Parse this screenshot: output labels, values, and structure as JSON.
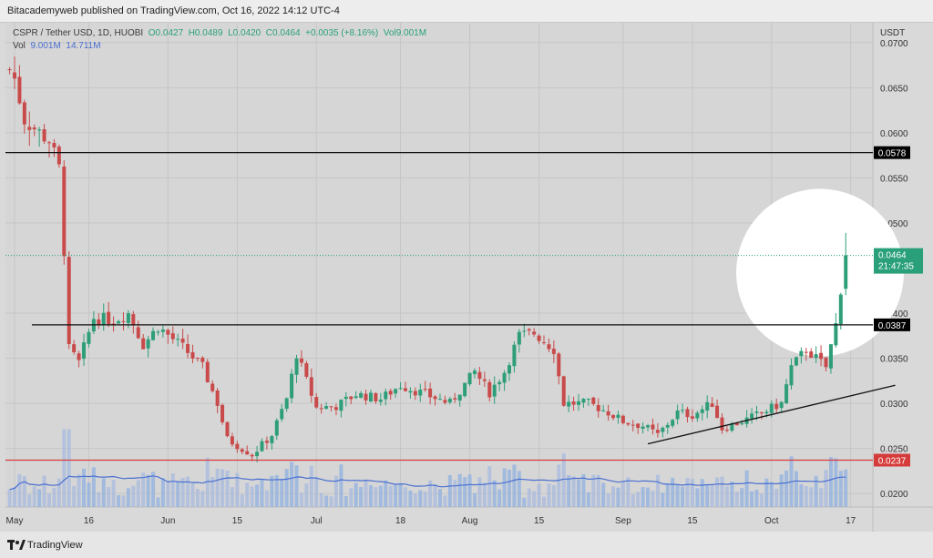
{
  "header": {
    "publisher_line": "Bitacademyweb published on TradingView.com, Oct 16, 2022 14:12 UTC-4"
  },
  "legend": {
    "symbol": "CSPR / Tether USD, 1D, HUOBI",
    "open": "O0.0427",
    "high": "H0.0489",
    "low": "L0.0420",
    "close": "C0.0464",
    "change": "+0.0035 (+8.16%)",
    "volume": "Vol9.001M",
    "vol_label": "Vol",
    "vol_value": "9.001M",
    "vol_ma": "14.711M"
  },
  "footer": {
    "brand": "TradingView"
  },
  "colors": {
    "up": "#2e9e78",
    "down": "#c94a4a",
    "up_volume": "#8fb0e0",
    "down_volume": "#a7b9df",
    "vol_ma_line": "#4a6fd1",
    "resistance_line": "#111111",
    "support_line": "#d63b3b",
    "trend_line": "#111111",
    "current_price_tag": "#2aa07a",
    "highlight_circle": "#ffffff"
  },
  "chart_data": {
    "type": "candlestick",
    "quote": "USDT",
    "ylim": [
      0.0185,
      0.0722
    ],
    "y_ticks": [
      "0.0700",
      "0.0650",
      "0.0600",
      "0.0550",
      "0.0500",
      "0.0400",
      "0.0350",
      "0.0300",
      "0.0250",
      "0.0200"
    ],
    "x_ticks": [
      {
        "label": "May",
        "date": "2022-05-01"
      },
      {
        "label": "16",
        "date": "2022-05-16"
      },
      {
        "label": "Jun",
        "date": "2022-06-01"
      },
      {
        "label": "15",
        "date": "2022-06-15"
      },
      {
        "label": "Jul",
        "date": "2022-07-01"
      },
      {
        "label": "18",
        "date": "2022-07-18"
      },
      {
        "label": "Aug",
        "date": "2022-08-01"
      },
      {
        "label": "15",
        "date": "2022-08-15"
      },
      {
        "label": "Sep",
        "date": "2022-09-01"
      },
      {
        "label": "15",
        "date": "2022-09-15"
      },
      {
        "label": "Oct",
        "date": "2022-10-01"
      },
      {
        "label": "17",
        "date": "2022-10-17"
      }
    ],
    "price_levels": [
      {
        "value": 0.0578,
        "label": "0.0578",
        "style": "resistance"
      },
      {
        "value": 0.0387,
        "label": "0.0387",
        "style": "resistance"
      },
      {
        "value": 0.0237,
        "label": "0.0237",
        "style": "support"
      }
    ],
    "current_price": {
      "value": 0.0464,
      "label": "0.0464",
      "countdown": "21:47:35"
    },
    "trend_line": {
      "from": {
        "date": "2022-09-06",
        "value": 0.0255
      },
      "to": {
        "date": "2022-10-26",
        "value": 0.032
      }
    },
    "close_anchors": [
      {
        "date": "2022-04-30",
        "value": 0.067
      },
      {
        "date": "2022-05-01",
        "value": 0.066
      },
      {
        "date": "2022-05-03",
        "value": 0.0615
      },
      {
        "date": "2022-05-06",
        "value": 0.06
      },
      {
        "date": "2022-05-08",
        "value": 0.0592
      },
      {
        "date": "2022-05-10",
        "value": 0.056
      },
      {
        "date": "2022-05-11",
        "value": 0.047
      },
      {
        "date": "2022-05-12",
        "value": 0.036
      },
      {
        "date": "2022-05-14",
        "value": 0.0345
      },
      {
        "date": "2022-05-17",
        "value": 0.0395
      },
      {
        "date": "2022-05-21",
        "value": 0.0392
      },
      {
        "date": "2022-05-24",
        "value": 0.04
      },
      {
        "date": "2022-05-27",
        "value": 0.0365
      },
      {
        "date": "2022-05-30",
        "value": 0.0385
      },
      {
        "date": "2022-06-04",
        "value": 0.0362
      },
      {
        "date": "2022-06-08",
        "value": 0.034
      },
      {
        "date": "2022-06-11",
        "value": 0.03
      },
      {
        "date": "2022-06-13",
        "value": 0.026
      },
      {
        "date": "2022-06-18",
        "value": 0.0243
      },
      {
        "date": "2022-06-22",
        "value": 0.0265
      },
      {
        "date": "2022-06-25",
        "value": 0.0305
      },
      {
        "date": "2022-06-27",
        "value": 0.0355
      },
      {
        "date": "2022-07-01",
        "value": 0.0295
      },
      {
        "date": "2022-07-05",
        "value": 0.0297
      },
      {
        "date": "2022-07-09",
        "value": 0.031
      },
      {
        "date": "2022-07-14",
        "value": 0.0305
      },
      {
        "date": "2022-07-18",
        "value": 0.032
      },
      {
        "date": "2022-07-23",
        "value": 0.031
      },
      {
        "date": "2022-07-28",
        "value": 0.03
      },
      {
        "date": "2022-08-02",
        "value": 0.0335
      },
      {
        "date": "2022-08-05",
        "value": 0.0312
      },
      {
        "date": "2022-08-08",
        "value": 0.0335
      },
      {
        "date": "2022-08-11",
        "value": 0.0375
      },
      {
        "date": "2022-08-14",
        "value": 0.0378
      },
      {
        "date": "2022-08-18",
        "value": 0.036
      },
      {
        "date": "2022-08-20",
        "value": 0.03
      },
      {
        "date": "2022-08-25",
        "value": 0.03
      },
      {
        "date": "2022-08-29",
        "value": 0.029
      },
      {
        "date": "2022-09-01",
        "value": 0.028
      },
      {
        "date": "2022-09-05",
        "value": 0.0275
      },
      {
        "date": "2022-09-08",
        "value": 0.0265
      },
      {
        "date": "2022-09-12",
        "value": 0.029
      },
      {
        "date": "2022-09-15",
        "value": 0.0287
      },
      {
        "date": "2022-09-19",
        "value": 0.03
      },
      {
        "date": "2022-09-21",
        "value": 0.0272
      },
      {
        "date": "2022-09-26",
        "value": 0.0282
      },
      {
        "date": "2022-09-30",
        "value": 0.0292
      },
      {
        "date": "2022-10-03",
        "value": 0.03
      },
      {
        "date": "2022-10-05",
        "value": 0.034
      },
      {
        "date": "2022-10-08",
        "value": 0.036
      },
      {
        "date": "2022-10-12",
        "value": 0.034
      },
      {
        "date": "2022-10-14",
        "value": 0.0387
      },
      {
        "date": "2022-10-15",
        "value": 0.0427
      },
      {
        "date": "2022-10-16",
        "value": 0.0464
      }
    ]
  }
}
